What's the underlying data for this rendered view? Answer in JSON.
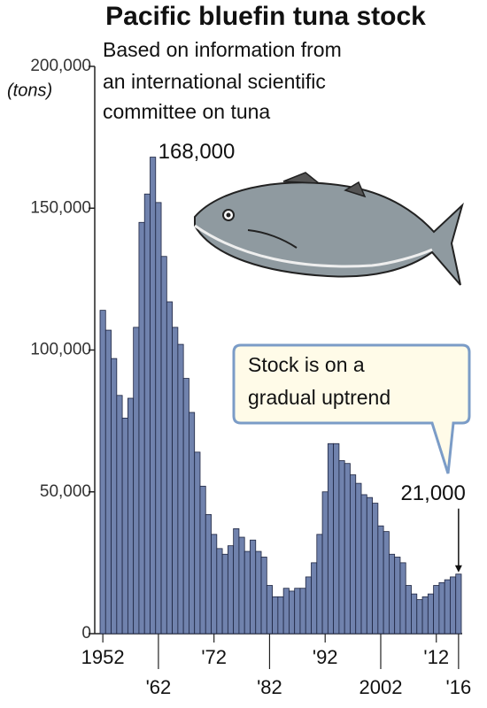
{
  "chart_data": {
    "type": "bar",
    "title": "Pacific bluefin tuna stock",
    "subtitle": [
      "Based on information from",
      "an international scientific",
      "committee on tuna"
    ],
    "y_label": "(tons)",
    "callout": [
      "Stock is on a",
      "gradual uptrend"
    ],
    "color": "#7082ad",
    "x": [
      1952,
      1953,
      1954,
      1955,
      1956,
      1957,
      1958,
      1959,
      1960,
      1961,
      1962,
      1963,
      1964,
      1965,
      1966,
      1967,
      1968,
      1969,
      1970,
      1971,
      1972,
      1973,
      1974,
      1975,
      1976,
      1977,
      1978,
      1979,
      1980,
      1981,
      1982,
      1983,
      1984,
      1985,
      1986,
      1987,
      1988,
      1989,
      1990,
      1991,
      1992,
      1993,
      1994,
      1995,
      1996,
      1997,
      1998,
      1999,
      2000,
      2001,
      2002,
      2003,
      2004,
      2005,
      2006,
      2007,
      2008,
      2009,
      2010,
      2011,
      2012,
      2013,
      2014,
      2015,
      2016
    ],
    "values": [
      114000,
      107000,
      97000,
      84000,
      76000,
      83000,
      108000,
      145000,
      155000,
      168000,
      152000,
      133000,
      117000,
      108000,
      102000,
      90000,
      78000,
      64000,
      52000,
      42000,
      35000,
      30000,
      28000,
      31000,
      37000,
      34000,
      29000,
      33000,
      29000,
      27000,
      17000,
      13000,
      13000,
      16000,
      15000,
      16000,
      16000,
      20000,
      25000,
      35000,
      50000,
      67000,
      67000,
      61000,
      60000,
      56000,
      53000,
      49000,
      48000,
      46000,
      38000,
      36000,
      28000,
      27000,
      25000,
      17000,
      14000,
      12000,
      13000,
      14000,
      17000,
      18000,
      19000,
      20000,
      21000
    ],
    "value_labels": [
      null,
      null,
      null,
      null,
      null,
      null,
      null,
      null,
      null,
      "168,000",
      null,
      null,
      null,
      null,
      null,
      null,
      null,
      null,
      null,
      null,
      null,
      null,
      null,
      null,
      null,
      null,
      null,
      null,
      null,
      null,
      null,
      null,
      null,
      null,
      null,
      null,
      null,
      null,
      null,
      null,
      null,
      null,
      null,
      null,
      null,
      null,
      null,
      null,
      null,
      null,
      null,
      null,
      null,
      null,
      null,
      null,
      null,
      null,
      null,
      null,
      null,
      null,
      null,
      null,
      "21,000"
    ],
    "xlim": [
      1951.5,
      2016.5
    ],
    "xticks": [
      {
        "value": 1952,
        "label": "1952"
      },
      {
        "value": 1962,
        "label": "'62"
      },
      {
        "value": 1972,
        "label": "'72"
      },
      {
        "value": 1982,
        "label": "'82"
      },
      {
        "value": 1992,
        "label": "'92"
      },
      {
        "value": 2002,
        "label": "2002"
      },
      {
        "value": 2012,
        "label": "'12"
      },
      {
        "value": 2016,
        "label": "'16"
      }
    ],
    "ylim": [
      0,
      200000
    ],
    "yticks": [
      0,
      {
        "value": 50000,
        "label": "50,000"
      },
      {
        "value": 100000,
        "label": "100,000"
      },
      {
        "value": 150000,
        "label": "150,000"
      },
      {
        "value": 200000,
        "label": "200,000"
      }
    ],
    "grid": false
  }
}
